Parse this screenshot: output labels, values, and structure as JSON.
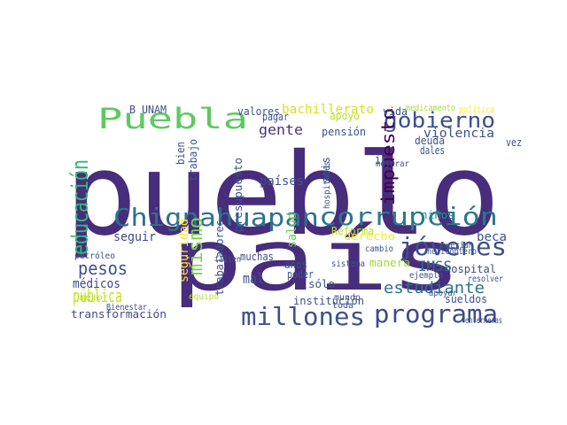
{
  "word_cloud": {
    "words": [
      {
        "text": "pueblo",
        "color": "#472d7b"
      },
      {
        "text": "país",
        "color": "#472d7b"
      },
      {
        "text": "Chignahuapan",
        "color": "#2c728e"
      },
      {
        "text": "corrupción",
        "color": "#2a788e"
      },
      {
        "text": "Puebla",
        "color": "#5ec962"
      },
      {
        "text": "programa",
        "color": "#3e4a89"
      },
      {
        "text": "millones",
        "color": "#3b528b"
      },
      {
        "text": "gobierno",
        "color": "#3b528b"
      },
      {
        "text": "jóvenes",
        "color": "#3b528b"
      },
      {
        "text": "educación",
        "color": "#35b779"
      },
      {
        "text": "estudiante",
        "color": "#2c728e"
      },
      {
        "text": "pública",
        "color": "#c8e020"
      },
      {
        "text": "mismo",
        "color": "#7ad151"
      },
      {
        "text": "pesos",
        "color": "#3b528b"
      },
      {
        "text": "gente",
        "color": "#46337e"
      },
      {
        "text": "impuesto",
        "color": "#440154"
      },
      {
        "text": "bachillerato",
        "color": "#d8e219"
      },
      {
        "text": "transformación",
        "color": "#3e4a89"
      },
      {
        "text": "hospital",
        "color": "#3e4a89"
      },
      {
        "text": "médicos",
        "color": "#3e4a89"
      },
      {
        "text": "seguir",
        "color": "#3e4a89"
      },
      {
        "text": "beca",
        "color": "#3b528b"
      },
      {
        "text": "IMSS",
        "color": "#31688e"
      },
      {
        "text": "violencia",
        "color": "#3b528b"
      },
      {
        "text": "salud",
        "color": "#6ece58"
      },
      {
        "text": "derecho",
        "color": "#fde725"
      },
      {
        "text": "países",
        "color": "#3b528b"
      },
      {
        "text": "pensión",
        "color": "#3b528b"
      },
      {
        "text": "valores",
        "color": "#3b528b"
      },
      {
        "text": "vida",
        "color": "#3b528b"
      },
      {
        "text": "deuda",
        "color": "#3b528b"
      },
      {
        "text": "ir",
        "color": "#3b528b"
      },
      {
        "text": "niños",
        "color": "#21918c"
      },
      {
        "text": "seis",
        "color": "#3b528b"
      },
      {
        "text": "apoyo",
        "color": "#b5de2b"
      },
      {
        "text": "Reforma",
        "color": "#b5de2b"
      },
      {
        "text": "institución",
        "color": "#3b528b"
      },
      {
        "text": "sueldos",
        "color": "#3b528b"
      },
      {
        "text": "muchas",
        "color": "#3b528b"
      },
      {
        "text": "mal",
        "color": "#3b528b"
      },
      {
        "text": "años",
        "color": "#3b528b"
      },
      {
        "text": "poder",
        "color": "#3b528b"
      },
      {
        "text": "sólo",
        "color": "#3b528b"
      },
      {
        "text": "mundo",
        "color": "#3b528b"
      },
      {
        "text": "toda",
        "color": "#3b528b"
      },
      {
        "text": "manera",
        "color": "#a0da39"
      },
      {
        "text": "ejemplo",
        "color": "#3b528b"
      },
      {
        "text": "sistema",
        "color": "#3b528b"
      },
      {
        "text": "resolver",
        "color": "#3b528b"
      },
      {
        "text": "apoyar",
        "color": "#3b528b"
      },
      {
        "text": "cambio",
        "color": "#3b528b"
      },
      {
        "text": "falten",
        "color": "#3b528b"
      },
      {
        "text": "equipo",
        "color": "#b5de2b"
      },
      {
        "text": "mejor",
        "color": "#b5de2b"
      },
      {
        "text": "petróleo",
        "color": "#3b528b"
      },
      {
        "text": "Bienestar",
        "color": "#3b528b"
      },
      {
        "text": "seguridad",
        "color": "#fde725"
      },
      {
        "text": "trabajadores",
        "color": "#3b528b"
      },
      {
        "text": "presupuesto",
        "color": "#3b528b"
      },
      {
        "text": "trabajo",
        "color": "#3b528b"
      },
      {
        "text": "bien",
        "color": "#3b528b"
      },
      {
        "text": "hospitales",
        "color": "#3b528b"
      },
      {
        "text": "pagar",
        "color": "#3b528b"
      },
      {
        "text": "dales",
        "color": "#3b528b"
      },
      {
        "text": "mejorar",
        "color": "#3b528b"
      },
      {
        "text": "vez",
        "color": "#3b528b"
      },
      {
        "text": "B UNAM",
        "color": "#3b528b"
      },
      {
        "text": "medicamento",
        "color": "#a0da39"
      },
      {
        "text": "política",
        "color": "#fde725"
      },
      {
        "text": "querían",
        "color": "#3b528b"
      },
      {
        "text": "enfermeras",
        "color": "#3b528b"
      },
      {
        "text": "helicóptero",
        "color": "#3b528b"
      }
    ]
  }
}
